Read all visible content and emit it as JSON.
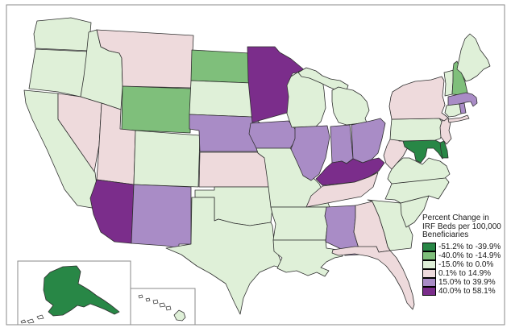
{
  "legend": {
    "title_lines": [
      "Percent Change in",
      "IRF Beds per 100,000",
      "Beneficiaries"
    ],
    "classes": [
      {
        "id": "g3",
        "label": "-51.2% to -39.9%",
        "color": "#288746"
      },
      {
        "id": "g2",
        "label": "-40.0% to -14.9%",
        "color": "#7fbf7b"
      },
      {
        "id": "g1",
        "label": "-15.0% to 0.0%",
        "color": "#dff0d8"
      },
      {
        "id": "p1",
        "label": "0.1% to 14.9%",
        "color": "#eedadc"
      },
      {
        "id": "p2",
        "label": "15.0% to 39.9%",
        "color": "#a98cc6"
      },
      {
        "id": "p3",
        "label": "40.0% to 58.1%",
        "color": "#7b2d8b"
      }
    ]
  },
  "map": {
    "stroke_color": "#2f2f2f",
    "frame_color": "#8a8a8a",
    "background_color": "#ffffff",
    "states": [
      {
        "abbr": "WA",
        "name": "Washington",
        "category": "g1"
      },
      {
        "abbr": "OR",
        "name": "Oregon",
        "category": "g1"
      },
      {
        "abbr": "CA",
        "name": "California",
        "category": "g1"
      },
      {
        "abbr": "NV",
        "name": "Nevada",
        "category": "p1"
      },
      {
        "abbr": "ID",
        "name": "Idaho",
        "category": "g1"
      },
      {
        "abbr": "MT",
        "name": "Montana",
        "category": "p1"
      },
      {
        "abbr": "WY",
        "name": "Wyoming",
        "category": "g2"
      },
      {
        "abbr": "UT",
        "name": "Utah",
        "category": "p1"
      },
      {
        "abbr": "CO",
        "name": "Colorado",
        "category": "g1"
      },
      {
        "abbr": "AZ",
        "name": "Arizona",
        "category": "p3"
      },
      {
        "abbr": "NM",
        "name": "New Mexico",
        "category": "p2"
      },
      {
        "abbr": "ND",
        "name": "North Dakota",
        "category": "g2"
      },
      {
        "abbr": "SD",
        "name": "South Dakota",
        "category": "g1"
      },
      {
        "abbr": "NE",
        "name": "Nebraska",
        "category": "p2"
      },
      {
        "abbr": "KS",
        "name": "Kansas",
        "category": "p1"
      },
      {
        "abbr": "OK",
        "name": "Oklahoma",
        "category": "g1"
      },
      {
        "abbr": "TX",
        "name": "Texas",
        "category": "g1"
      },
      {
        "abbr": "MN",
        "name": "Minnesota",
        "category": "p3"
      },
      {
        "abbr": "IA",
        "name": "Iowa",
        "category": "p2"
      },
      {
        "abbr": "MO",
        "name": "Missouri",
        "category": "g1"
      },
      {
        "abbr": "AR",
        "name": "Arkansas",
        "category": "g1"
      },
      {
        "abbr": "LA",
        "name": "Louisiana",
        "category": "g1"
      },
      {
        "abbr": "WI",
        "name": "Wisconsin",
        "category": "g1"
      },
      {
        "abbr": "MI",
        "name": "Michigan",
        "category": "g1"
      },
      {
        "abbr": "IL",
        "name": "Illinois",
        "category": "p2"
      },
      {
        "abbr": "IN",
        "name": "Indiana",
        "category": "p2"
      },
      {
        "abbr": "OH",
        "name": "Ohio",
        "category": "p2"
      },
      {
        "abbr": "KY",
        "name": "Kentucky",
        "category": "p3"
      },
      {
        "abbr": "TN",
        "name": "Tennessee",
        "category": "p1"
      },
      {
        "abbr": "MS",
        "name": "Mississippi",
        "category": "p2"
      },
      {
        "abbr": "AL",
        "name": "Alabama",
        "category": "p1"
      },
      {
        "abbr": "GA",
        "name": "Georgia",
        "category": "g1"
      },
      {
        "abbr": "FL",
        "name": "Florida",
        "category": "p1"
      },
      {
        "abbr": "SC",
        "name": "South Carolina",
        "category": "g1"
      },
      {
        "abbr": "NC",
        "name": "North Carolina",
        "category": "g1"
      },
      {
        "abbr": "VA",
        "name": "Virginia",
        "category": "g1"
      },
      {
        "abbr": "WV",
        "name": "West Virginia",
        "category": "p1"
      },
      {
        "abbr": "MD",
        "name": "Maryland",
        "category": "g3"
      },
      {
        "abbr": "DE",
        "name": "Delaware",
        "category": "g3"
      },
      {
        "abbr": "PA",
        "name": "Pennsylvania",
        "category": "g1"
      },
      {
        "abbr": "NJ",
        "name": "New Jersey",
        "category": "p1"
      },
      {
        "abbr": "NY",
        "name": "New York",
        "category": "p1"
      },
      {
        "abbr": "VT",
        "name": "Vermont",
        "category": "g1"
      },
      {
        "abbr": "NH",
        "name": "New Hampshire",
        "category": "g2"
      },
      {
        "abbr": "ME",
        "name": "Maine",
        "category": "g1"
      },
      {
        "abbr": "MA",
        "name": "Massachusetts",
        "category": "p2"
      },
      {
        "abbr": "CT",
        "name": "Connecticut",
        "category": "g1"
      },
      {
        "abbr": "RI",
        "name": "Rhode Island",
        "category": "p2"
      },
      {
        "abbr": "AK",
        "name": "Alaska",
        "category": "g3"
      },
      {
        "abbr": "HI",
        "name": "Hawaii",
        "category": "g1"
      }
    ]
  }
}
